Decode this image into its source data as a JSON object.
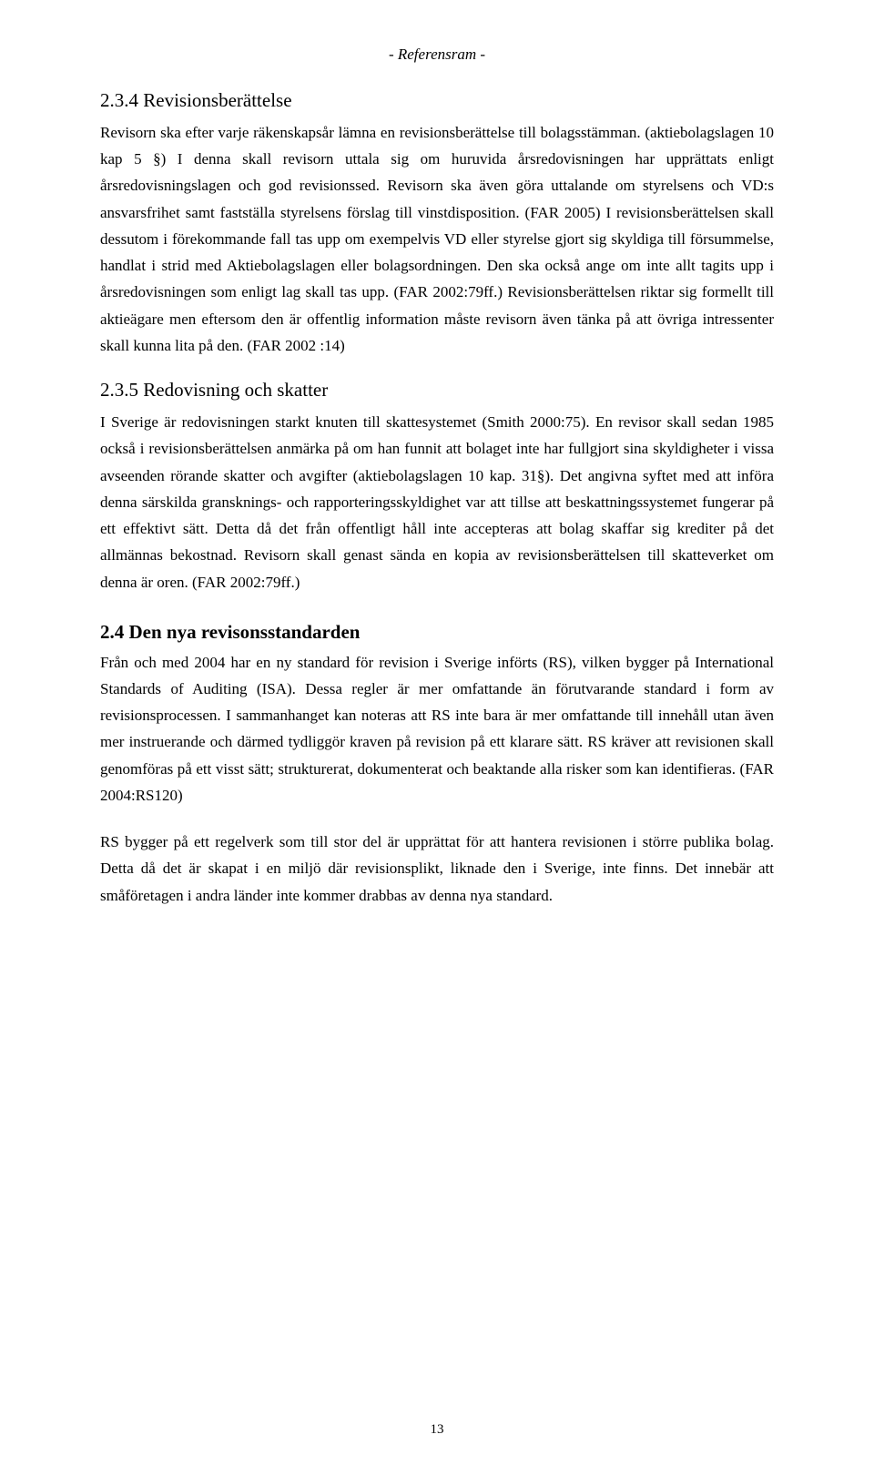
{
  "header": "- Referensram -",
  "sections": {
    "s234": {
      "title": "2.3.4 Revisionsberättelse",
      "p1": "Revisorn ska efter varje räkenskapsår lämna en revisionsberättelse till bolagsstämman. (aktiebolagslagen 10 kap 5 §) I denna skall revisorn uttala sig om huruvida årsredovisningen har upprättats enligt årsredovisningslagen och god revisionssed. Revisorn ska även göra uttalande om styrelsens och VD:s ansvarsfrihet samt fastställa styrelsens förslag till vinstdisposition. (FAR 2005) I revisionsberättelsen skall dessutom i förekommande fall tas upp om exempelvis VD eller styrelse gjort sig skyldiga till försummelse, handlat i strid med Aktiebolagslagen eller bolagsordningen. Den ska också ange om inte allt tagits upp i årsredovisningen som enligt lag skall tas upp. (FAR 2002:79ff.) Revisionsberättelsen riktar sig formellt till aktieägare men eftersom den är offentlig information måste revisorn även tänka på att övriga intressenter skall kunna lita på den. (FAR 2002 :14)"
    },
    "s235": {
      "title": "2.3.5 Redovisning och skatter",
      "p1": "I Sverige är redovisningen starkt knuten till skattesystemet (Smith 2000:75). En revisor skall sedan 1985 också i revisionsberättelsen anmärka på om han funnit att bolaget inte har fullgjort sina skyldigheter i vissa avseenden rörande skatter och avgifter (aktiebolagslagen 10 kap. 31§). Det angivna syftet med att införa denna särskilda gransknings- och rapporteringsskyldighet var att tillse att beskattningssystemet fungerar på ett effektivt sätt. Detta då det från offentligt håll inte accepteras att bolag skaffar sig krediter på det allmännas bekostnad. Revisorn skall genast sända en kopia av revisionsberättelsen till skatteverket om denna är oren. (FAR 2002:79ff.)"
    },
    "s24": {
      "title": "2.4 Den nya revisonsstandarden",
      "p1": "Från och med 2004 har en ny standard för revision i Sverige införts (RS), vilken bygger på International Standards of Auditing (ISA). Dessa regler är mer omfattande än förutvarande standard i form av revisionsprocessen. I sammanhanget kan noteras att RS inte bara är mer omfattande till innehåll utan även mer instruerande och därmed tydliggör kraven på revision på ett klarare sätt. RS kräver att revisionen skall genomföras på ett visst sätt; strukturerat, dokumenterat och beaktande alla risker som kan identifieras. (FAR 2004:RS120)",
      "p2": "RS bygger på ett regelverk som till stor del är upprättat för att hantera revisionen i större publika bolag. Detta då det är skapat i en miljö där revisionsplikt, liknade den i Sverige, inte finns. Det innebär att småföretagen i andra länder inte kommer drabbas av denna nya standard."
    }
  },
  "page_number": "13"
}
